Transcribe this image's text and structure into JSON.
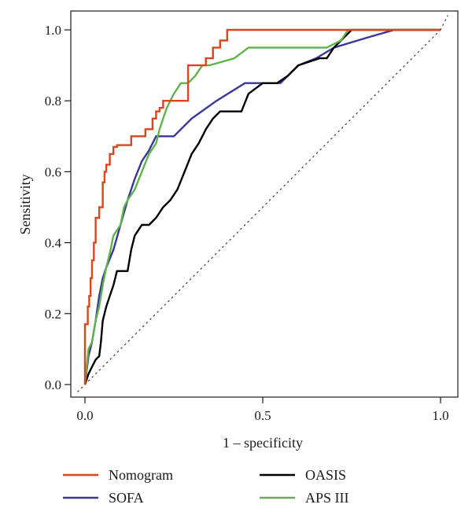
{
  "chart_data": {
    "type": "line",
    "title": "",
    "xlabel": "1 – specificity",
    "ylabel": "Sensitivity",
    "xlim": [
      -0.02,
      1.02
    ],
    "ylim": [
      -0.02,
      1.05
    ],
    "xticks": [
      0.0,
      0.5,
      1.0
    ],
    "xtick_labels": [
      "0.0",
      "0.5",
      "1.0"
    ],
    "yticks": [
      0.0,
      0.2,
      0.4,
      0.6,
      0.8,
      1.0
    ],
    "ytick_labels": [
      "0.0",
      "0.2",
      "0.4",
      "0.6",
      "0.8",
      "1.0"
    ],
    "grid": false,
    "legend_position": "bottom",
    "reference_line": {
      "style": "dotted",
      "x": [
        0,
        1
      ],
      "y": [
        0,
        1
      ]
    },
    "series": [
      {
        "name": "Nomogram",
        "color": "#d9461c",
        "x": [
          0.0,
          0.0,
          0.008,
          0.008,
          0.012,
          0.012,
          0.016,
          0.016,
          0.02,
          0.02,
          0.025,
          0.025,
          0.03,
          0.03,
          0.04,
          0.04,
          0.05,
          0.05,
          0.055,
          0.055,
          0.06,
          0.06,
          0.07,
          0.07,
          0.08,
          0.08,
          0.09,
          0.09,
          0.13,
          0.13,
          0.17,
          0.17,
          0.19,
          0.19,
          0.2,
          0.2,
          0.21,
          0.21,
          0.22,
          0.22,
          0.23,
          0.23,
          0.29,
          0.29,
          0.3,
          0.3,
          0.32,
          0.32,
          0.34,
          0.34,
          0.36,
          0.36,
          0.38,
          0.38,
          0.4,
          0.4,
          0.73,
          1.0
        ],
        "y": [
          0.0,
          0.17,
          0.17,
          0.22,
          0.22,
          0.25,
          0.25,
          0.3,
          0.3,
          0.35,
          0.35,
          0.4,
          0.4,
          0.47,
          0.47,
          0.5,
          0.5,
          0.57,
          0.57,
          0.6,
          0.6,
          0.62,
          0.62,
          0.65,
          0.65,
          0.67,
          0.67,
          0.675,
          0.675,
          0.7,
          0.7,
          0.72,
          0.72,
          0.75,
          0.75,
          0.77,
          0.77,
          0.78,
          0.78,
          0.8,
          0.8,
          0.8,
          0.8,
          0.9,
          0.9,
          0.9,
          0.9,
          0.9,
          0.9,
          0.92,
          0.92,
          0.95,
          0.95,
          0.97,
          0.97,
          1.0,
          1.0,
          1.0
        ]
      },
      {
        "name": "SOFA",
        "color": "#3b3699",
        "x": [
          0.0,
          0.01,
          0.02,
          0.03,
          0.04,
          0.05,
          0.06,
          0.08,
          0.1,
          0.12,
          0.14,
          0.16,
          0.18,
          0.2,
          0.25,
          0.3,
          0.37,
          0.45,
          0.55,
          0.6,
          0.65,
          0.7,
          0.8,
          0.87,
          1.0
        ],
        "y": [
          0.0,
          0.08,
          0.12,
          0.18,
          0.25,
          0.3,
          0.33,
          0.38,
          0.45,
          0.52,
          0.58,
          0.63,
          0.66,
          0.7,
          0.7,
          0.75,
          0.8,
          0.85,
          0.85,
          0.9,
          0.92,
          0.95,
          0.98,
          1.0,
          1.0
        ]
      },
      {
        "name": "OASIS",
        "color": "#000000",
        "x": [
          0.0,
          0.01,
          0.02,
          0.03,
          0.04,
          0.045,
          0.05,
          0.06,
          0.07,
          0.08,
          0.09,
          0.12,
          0.13,
          0.14,
          0.16,
          0.18,
          0.2,
          0.22,
          0.24,
          0.26,
          0.28,
          0.3,
          0.32,
          0.34,
          0.36,
          0.38,
          0.4,
          0.44,
          0.46,
          0.5,
          0.54,
          0.57,
          0.6,
          0.66,
          0.68,
          0.7,
          0.73,
          0.75,
          0.78,
          1.0
        ],
        "y": [
          0.0,
          0.03,
          0.05,
          0.07,
          0.08,
          0.12,
          0.18,
          0.22,
          0.25,
          0.28,
          0.32,
          0.32,
          0.38,
          0.42,
          0.45,
          0.45,
          0.47,
          0.5,
          0.52,
          0.55,
          0.6,
          0.65,
          0.68,
          0.72,
          0.75,
          0.77,
          0.77,
          0.77,
          0.82,
          0.85,
          0.85,
          0.87,
          0.9,
          0.92,
          0.92,
          0.95,
          0.98,
          1.0,
          1.0,
          1.0
        ]
      },
      {
        "name": "APS III",
        "color": "#5db44a",
        "x": [
          0.0,
          0.005,
          0.01,
          0.02,
          0.03,
          0.04,
          0.05,
          0.06,
          0.07,
          0.08,
          0.1,
          0.11,
          0.12,
          0.14,
          0.16,
          0.18,
          0.2,
          0.21,
          0.22,
          0.23,
          0.24,
          0.25,
          0.27,
          0.29,
          0.31,
          0.33,
          0.35,
          0.42,
          0.46,
          0.68,
          0.72,
          0.74,
          0.78,
          1.0
        ],
        "y": [
          0.0,
          0.05,
          0.1,
          0.12,
          0.18,
          0.22,
          0.28,
          0.33,
          0.37,
          0.42,
          0.45,
          0.5,
          0.52,
          0.55,
          0.6,
          0.65,
          0.68,
          0.72,
          0.75,
          0.78,
          0.8,
          0.82,
          0.85,
          0.85,
          0.87,
          0.9,
          0.9,
          0.92,
          0.95,
          0.95,
          0.97,
          1.0,
          1.0,
          1.0
        ]
      }
    ]
  }
}
